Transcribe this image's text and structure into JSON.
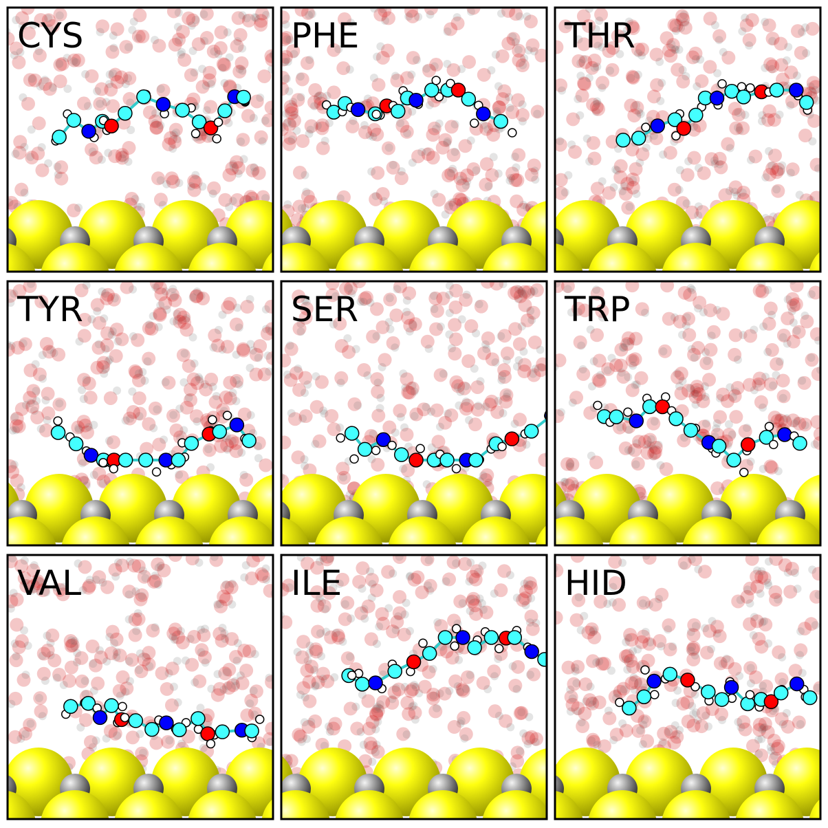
{
  "panels": [
    {
      "label": "CYS"
    },
    {
      "label": "PHE"
    },
    {
      "label": "THR"
    },
    {
      "label": "TYR"
    },
    {
      "label": "SER"
    },
    {
      "label": "TRP"
    },
    {
      "label": "VAL"
    },
    {
      "label": "ILE"
    },
    {
      "label": "HID"
    }
  ]
}
